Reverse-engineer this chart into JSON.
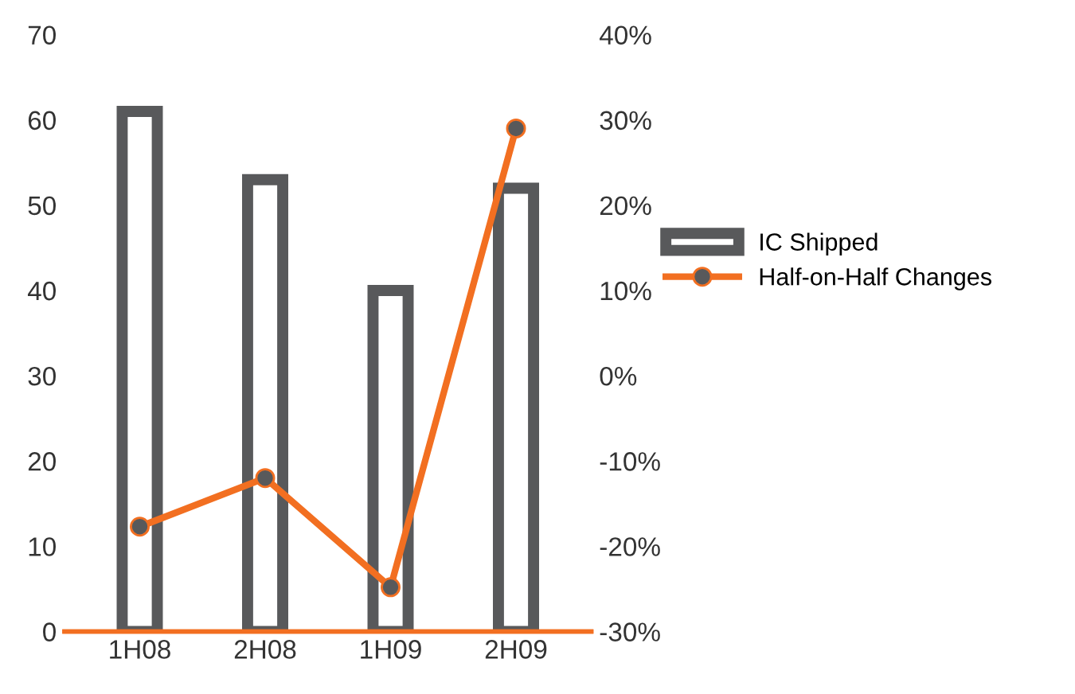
{
  "chart_data": {
    "type": "bar",
    "categories": [
      "1H08",
      "2H08",
      "1H09",
      "2H09"
    ],
    "series": [
      {
        "name": "IC Shipped",
        "color": "#58595b",
        "values": [
          61,
          53,
          40,
          52
        ]
      },
      {
        "name": "Half-on-Half Changes",
        "type": "line",
        "axis": "y2",
        "color": "#f26f21",
        "values": [
          -17.7,
          -12,
          -24.8,
          29
        ]
      }
    ],
    "ylim": [
      0,
      70
    ],
    "yticks": [
      0,
      10,
      20,
      30,
      40,
      50,
      60,
      70
    ],
    "y2lim": [
      -30,
      40
    ],
    "y2ticks": [
      {
        "value": -30,
        "label": "-30%"
      },
      {
        "value": -20,
        "label": "-20%"
      },
      {
        "value": -10,
        "label": "-10%"
      },
      {
        "value": 0,
        "label": "0%"
      },
      {
        "value": 10,
        "label": "10%"
      },
      {
        "value": 20,
        "label": "20%"
      },
      {
        "value": 30,
        "label": "30%"
      },
      {
        "value": 40,
        "label": "40%"
      }
    ],
    "grid": false,
    "legend": "right",
    "marker": "circle",
    "line_style": "solid"
  }
}
